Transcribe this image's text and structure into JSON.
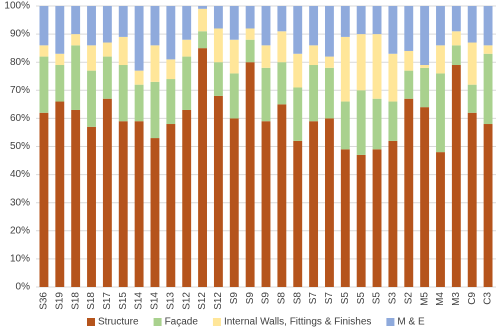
{
  "chart_data": {
    "type": "stacked_bar",
    "categories": [
      "S36",
      "S19",
      "S18",
      "S18",
      "S17",
      "S15",
      "S14",
      "S14",
      "S13",
      "S12",
      "S12",
      "S12",
      "S9",
      "S9",
      "S9",
      "S8",
      "S8",
      "S7",
      "S7",
      "S5",
      "S5",
      "S5",
      "S3",
      "S2",
      "M5",
      "M4",
      "M3",
      "C9",
      "C3"
    ],
    "series": [
      {
        "name": "Structure",
        "color": "#b5541c",
        "values": [
          62,
          66,
          63,
          57,
          67,
          59,
          59,
          53,
          58,
          63,
          85,
          68,
          60,
          80,
          59,
          65,
          52,
          59,
          60,
          49,
          47,
          49,
          52,
          67,
          64,
          48,
          79,
          62,
          58
        ]
      },
      {
        "name": "Façade",
        "color": "#a9d18e",
        "values": [
          20,
          13,
          23,
          20,
          15,
          20,
          13,
          20,
          16,
          19,
          6,
          12,
          16,
          8,
          19,
          15,
          19,
          20,
          18,
          17,
          23,
          18,
          14,
          10,
          14,
          28,
          7,
          10,
          25
        ]
      },
      {
        "name": "Internal Walls, Fittings & Finishes",
        "color": "#ffe699",
        "values": [
          4,
          4,
          4,
          9,
          5,
          10,
          5,
          13,
          7,
          6,
          8,
          12,
          12,
          4,
          8,
          11,
          12,
          7,
          4,
          23,
          20,
          23,
          17,
          7,
          1,
          10,
          5,
          15,
          3
        ]
      },
      {
        "name": "M & E",
        "color": "#8faadc",
        "values": [
          14,
          17,
          10,
          14,
          13,
          11,
          23,
          14,
          19,
          12,
          1,
          8,
          12,
          8,
          14,
          9,
          17,
          14,
          18,
          11,
          10,
          10,
          17,
          16,
          21,
          14,
          9,
          13,
          14
        ]
      }
    ],
    "ylim": [
      0,
      100
    ],
    "yticks": [
      {
        "value": 0,
        "label": "0%"
      },
      {
        "value": 10,
        "label": "10%"
      },
      {
        "value": 20,
        "label": "20%"
      },
      {
        "value": 30,
        "label": "30%"
      },
      {
        "value": 40,
        "label": "40%"
      },
      {
        "value": 50,
        "label": "50%"
      },
      {
        "value": 60,
        "label": "60%"
      },
      {
        "value": 70,
        "label": "70%"
      },
      {
        "value": 80,
        "label": "80%"
      },
      {
        "value": 90,
        "label": "90%"
      },
      {
        "value": 100,
        "label": "100%"
      }
    ],
    "grid": true,
    "legend": "bottom"
  }
}
